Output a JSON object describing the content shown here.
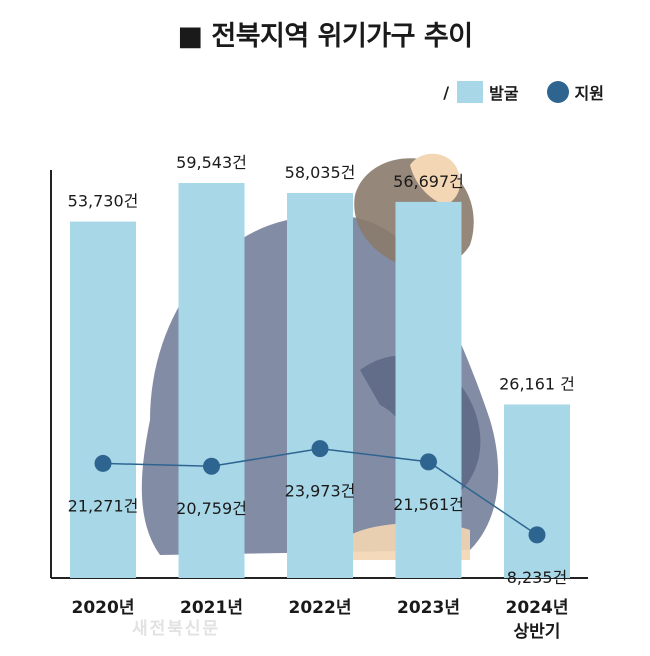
{
  "title": "■ 전북지역 위기가구 추이",
  "legend": {
    "prefix": "/",
    "items": [
      "발굴",
      "지원"
    ]
  },
  "watermark": "새전북신문",
  "colors": {
    "bar": "#a8d8e8",
    "line": "#2e6590",
    "dot": "#2e6590",
    "silhouette": "#6c7894",
    "hair": "#8a7a6a",
    "skin": "#f3d6b4"
  },
  "chart_data": {
    "type": "bar",
    "categories": [
      "2020년",
      "2021년",
      "2022년",
      "2023년",
      "2024년\n상반기"
    ],
    "series": [
      {
        "name": "발굴",
        "type": "bar",
        "values": [
          53730,
          59543,
          58035,
          56697,
          26161
        ],
        "labels": [
          "53,730건",
          "59,543건",
          "58,035건",
          "56,697건",
          "26,161 건"
        ]
      },
      {
        "name": "지원",
        "type": "line",
        "values": [
          21271,
          20759,
          23973,
          21561,
          8235
        ],
        "labels": [
          "21,271건",
          "20,759건",
          "23,973건",
          "21,561건",
          "8,235건"
        ]
      }
    ]
  }
}
